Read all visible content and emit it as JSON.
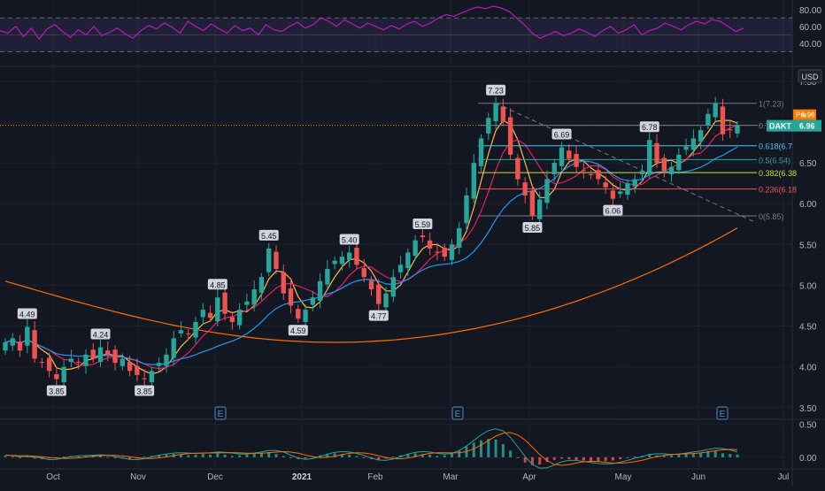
{
  "currency_button": "USD",
  "ticker_tag": "DAKT",
  "price_badge": "6.96",
  "pre_tag": "Pre",
  "pre_value": "6.96",
  "earnings_marker": "E",
  "colors": {
    "background": "#131722",
    "up_candle": "#26a69a",
    "down_candle": "#ef5350",
    "ma_short": "#ffb74d",
    "ma_mid": "#e91e63",
    "ma_long": "#2196f3",
    "ma_200": "#ff6d00",
    "rsi_line": "#b71cbc",
    "rsi_band": "#7e57c2",
    "macd_line": "#26a69a",
    "signal_line": "#ff6d00",
    "badge_orange": "#f57c00",
    "badge_green": "#26a69a"
  },
  "chart_data": [
    {
      "type": "line",
      "panel": "rsi",
      "y_ticks": [
        "80.00",
        "60.00",
        "40.00"
      ],
      "levels": [
        70,
        50,
        30
      ],
      "ylim": [
        20,
        85
      ],
      "values": [
        55,
        52,
        60,
        48,
        58,
        45,
        57,
        62,
        54,
        47,
        56,
        50,
        60,
        49,
        53,
        58,
        51,
        46,
        55,
        61,
        57,
        64,
        59,
        52,
        66,
        60,
        55,
        63,
        57,
        52,
        61,
        55,
        58,
        50,
        62,
        56,
        54,
        60,
        65,
        58,
        62,
        70,
        66,
        60,
        68,
        63,
        58,
        64,
        60,
        56,
        61,
        57,
        63,
        66,
        60,
        64,
        70,
        74,
        72,
        76,
        80,
        83,
        81,
        84,
        82,
        78,
        70,
        62,
        52,
        46,
        50,
        54,
        49,
        52,
        57,
        53,
        48,
        55,
        60,
        52,
        56,
        62,
        50,
        55,
        58,
        64,
        60,
        56,
        62,
        66,
        63,
        68,
        66,
        60,
        54,
        58
      ]
    },
    {
      "type": "candlestick",
      "panel": "price",
      "currency": "USD",
      "y_ticks": [
        "7.50",
        "7.00",
        "6.50",
        "6.00",
        "5.50",
        "5.00",
        "4.50",
        "4.00",
        "3.50"
      ],
      "x_ticks": [
        "Oct",
        "Nov",
        "Dec",
        "2021",
        "Feb",
        "Mar",
        "Apr",
        "May",
        "Jun",
        "Jul"
      ],
      "ylim": [
        3.4,
        7.65
      ],
      "fib_levels": [
        {
          "label": "1(7.23)",
          "value": 7.23,
          "color": "#787b86"
        },
        {
          "label": "0.786(6.9",
          "value": 6.96,
          "color": "#787b86"
        },
        {
          "label": "0.618(6.7",
          "value": 6.71,
          "color": "#4fc3f7"
        },
        {
          "label": "0.5(6.54)",
          "value": 6.54,
          "color": "#26a69a"
        },
        {
          "label": "0.382(6.38",
          "value": 6.38,
          "color": "#cddc39"
        },
        {
          "label": "0.236(6.18",
          "value": 6.18,
          "color": "#ef5350"
        },
        {
          "label": "0(5.85)",
          "value": 5.85,
          "color": "#787b86"
        }
      ],
      "annotations": [
        {
          "text": "4.49",
          "value": 4.49
        },
        {
          "text": "3.85",
          "value": 3.85
        },
        {
          "text": "4.24",
          "value": 4.24
        },
        {
          "text": "3.85",
          "value": 3.85
        },
        {
          "text": "4.85",
          "value": 4.85
        },
        {
          "text": "5.45",
          "value": 5.45
        },
        {
          "text": "4.59",
          "value": 4.59
        },
        {
          "text": "5.40",
          "value": 5.4
        },
        {
          "text": "4.77",
          "value": 4.77
        },
        {
          "text": "5.59",
          "value": 5.59
        },
        {
          "text": "7.23",
          "value": 7.23
        },
        {
          "text": "5.85",
          "value": 5.85
        },
        {
          "text": "6.69",
          "value": 6.69
        },
        {
          "text": "6.06",
          "value": 6.06
        },
        {
          "text": "6.78",
          "value": 6.78
        }
      ],
      "close": [
        4.3,
        4.35,
        4.2,
        4.49,
        4.1,
        4.05,
        3.95,
        3.85,
        4.0,
        4.1,
        4.05,
        4.15,
        4.1,
        4.24,
        4.15,
        4.05,
        4.1,
        3.95,
        3.9,
        3.85,
        3.95,
        4.05,
        4.15,
        4.35,
        4.45,
        4.4,
        4.55,
        4.7,
        4.6,
        4.85,
        4.65,
        4.55,
        4.7,
        4.8,
        4.95,
        5.1,
        5.45,
        5.2,
        4.9,
        4.75,
        4.59,
        4.7,
        4.85,
        5.05,
        5.2,
        5.3,
        5.35,
        5.4,
        5.25,
        5.1,
        4.95,
        4.77,
        4.9,
        5.1,
        5.25,
        5.4,
        5.55,
        5.59,
        5.45,
        5.4,
        5.35,
        5.5,
        5.7,
        6.1,
        6.5,
        6.8,
        7.05,
        7.23,
        7.0,
        6.6,
        6.3,
        6.1,
        5.85,
        6.05,
        6.3,
        6.5,
        6.69,
        6.55,
        6.45,
        6.4,
        6.35,
        6.3,
        6.2,
        6.06,
        6.15,
        6.25,
        6.3,
        6.4,
        6.78,
        6.5,
        6.4,
        6.45,
        6.6,
        6.7,
        6.8,
        6.9,
        7.1,
        7.23,
        6.85,
        6.9,
        6.96
      ]
    },
    {
      "type": "bar",
      "panel": "macd",
      "y_ticks": [
        "0.50",
        "0.00"
      ],
      "ylim": [
        -0.15,
        0.55
      ],
      "histogram": [
        0.02,
        0.01,
        -0.01,
        0.03,
        -0.02,
        -0.03,
        -0.02,
        -0.01,
        0.01,
        0.02,
        0.01,
        0.02,
        0.03,
        0.02,
        0.01,
        -0.01,
        -0.02,
        -0.03,
        -0.02,
        0.01,
        0.02,
        0.03,
        0.04,
        0.05,
        0.04,
        0.03,
        0.04,
        0.05,
        0.04,
        0.06,
        0.04,
        0.02,
        0.03,
        0.04,
        0.05,
        0.06,
        0.08,
        0.05,
        0.02,
        -0.01,
        -0.03,
        -0.02,
        0.01,
        0.03,
        0.05,
        0.06,
        0.05,
        0.04,
        0.02,
        -0.01,
        -0.03,
        -0.04,
        -0.02,
        0.01,
        0.03,
        0.05,
        0.06,
        0.05,
        0.04,
        0.02,
        0.03,
        0.06,
        0.1,
        0.16,
        0.22,
        0.26,
        0.28,
        0.27,
        0.2,
        0.1,
        0.0,
        -0.08,
        -0.12,
        -0.11,
        -0.07,
        -0.04,
        -0.02,
        -0.03,
        -0.04,
        -0.05,
        -0.06,
        -0.07,
        -0.06,
        -0.05,
        -0.03,
        -0.01,
        0.01,
        0.02,
        0.05,
        0.03,
        0.02,
        0.03,
        0.04,
        0.05,
        0.06,
        0.07,
        0.09,
        0.1,
        0.06,
        0.05,
        0.04
      ]
    }
  ]
}
